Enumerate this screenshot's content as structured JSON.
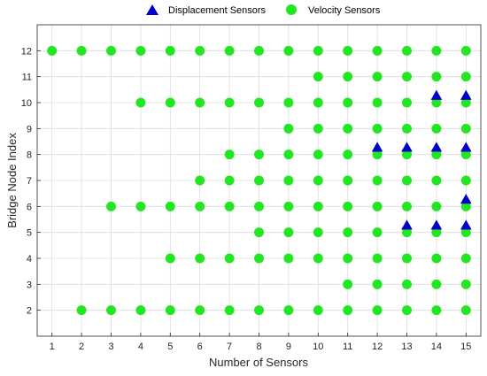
{
  "chart_data": {
    "type": "scatter",
    "xlabel": "Number of Sensors",
    "ylabel": "Bridge Node Index",
    "xlim": [
      0.5,
      15.5
    ],
    "ylim": [
      1,
      13
    ],
    "xticks": [
      1,
      2,
      3,
      4,
      5,
      6,
      7,
      8,
      9,
      10,
      11,
      12,
      13,
      14,
      15
    ],
    "yticks": [
      2,
      3,
      4,
      5,
      6,
      7,
      8,
      9,
      10,
      11,
      12
    ],
    "grid": true,
    "legend_position": "top",
    "series": [
      {
        "name": "Displacement Sensors",
        "marker": "triangle",
        "color": "#0000cc",
        "points": [
          [
            12,
            8.25
          ],
          [
            13,
            5.25
          ],
          [
            13,
            8.25
          ],
          [
            14,
            5.25
          ],
          [
            14,
            8.25
          ],
          [
            14,
            10.25
          ],
          [
            15,
            5.25
          ],
          [
            15,
            6.25
          ],
          [
            15,
            8.25
          ],
          [
            15,
            10.25
          ]
        ]
      },
      {
        "name": "Velocity Sensors",
        "marker": "circle",
        "color": "#22e622",
        "points": [
          [
            1,
            12
          ],
          [
            2,
            2
          ],
          [
            2,
            12
          ],
          [
            3,
            2
          ],
          [
            3,
            6
          ],
          [
            3,
            12
          ],
          [
            4,
            2
          ],
          [
            4,
            6
          ],
          [
            4,
            10
          ],
          [
            4,
            12
          ],
          [
            5,
            2
          ],
          [
            5,
            4
          ],
          [
            5,
            6
          ],
          [
            5,
            10
          ],
          [
            5,
            12
          ],
          [
            6,
            2
          ],
          [
            6,
            4
          ],
          [
            6,
            6
          ],
          [
            6,
            7
          ],
          [
            6,
            10
          ],
          [
            6,
            12
          ],
          [
            7,
            2
          ],
          [
            7,
            4
          ],
          [
            7,
            6
          ],
          [
            7,
            7
          ],
          [
            7,
            8
          ],
          [
            7,
            10
          ],
          [
            7,
            12
          ],
          [
            8,
            2
          ],
          [
            8,
            4
          ],
          [
            8,
            5
          ],
          [
            8,
            6
          ],
          [
            8,
            7
          ],
          [
            8,
            8
          ],
          [
            8,
            10
          ],
          [
            8,
            12
          ],
          [
            9,
            2
          ],
          [
            9,
            4
          ],
          [
            9,
            5
          ],
          [
            9,
            6
          ],
          [
            9,
            7
          ],
          [
            9,
            8
          ],
          [
            9,
            9
          ],
          [
            9,
            10
          ],
          [
            9,
            12
          ],
          [
            10,
            2
          ],
          [
            10,
            4
          ],
          [
            10,
            5
          ],
          [
            10,
            6
          ],
          [
            10,
            7
          ],
          [
            10,
            8
          ],
          [
            10,
            9
          ],
          [
            10,
            10
          ],
          [
            10,
            11
          ],
          [
            10,
            12
          ],
          [
            11,
            2
          ],
          [
            11,
            3
          ],
          [
            11,
            4
          ],
          [
            11,
            5
          ],
          [
            11,
            6
          ],
          [
            11,
            7
          ],
          [
            11,
            8
          ],
          [
            11,
            9
          ],
          [
            11,
            10
          ],
          [
            11,
            11
          ],
          [
            11,
            12
          ],
          [
            12,
            2
          ],
          [
            12,
            3
          ],
          [
            12,
            4
          ],
          [
            12,
            5
          ],
          [
            12,
            6
          ],
          [
            12,
            7
          ],
          [
            12,
            8
          ],
          [
            12,
            9
          ],
          [
            12,
            10
          ],
          [
            12,
            11
          ],
          [
            12,
            12
          ],
          [
            13,
            2
          ],
          [
            13,
            3
          ],
          [
            13,
            4
          ],
          [
            13,
            5
          ],
          [
            13,
            6
          ],
          [
            13,
            7
          ],
          [
            13,
            8
          ],
          [
            13,
            9
          ],
          [
            13,
            10
          ],
          [
            13,
            11
          ],
          [
            13,
            12
          ],
          [
            14,
            2
          ],
          [
            14,
            3
          ],
          [
            14,
            4
          ],
          [
            14,
            5
          ],
          [
            14,
            6
          ],
          [
            14,
            7
          ],
          [
            14,
            8
          ],
          [
            14,
            9
          ],
          [
            14,
            10
          ],
          [
            14,
            11
          ],
          [
            14,
            12
          ],
          [
            15,
            2
          ],
          [
            15,
            3
          ],
          [
            15,
            4
          ],
          [
            15,
            5
          ],
          [
            15,
            6
          ],
          [
            15,
            7
          ],
          [
            15,
            8
          ],
          [
            15,
            9
          ],
          [
            15,
            10
          ],
          [
            15,
            11
          ],
          [
            15,
            12
          ]
        ]
      }
    ]
  }
}
